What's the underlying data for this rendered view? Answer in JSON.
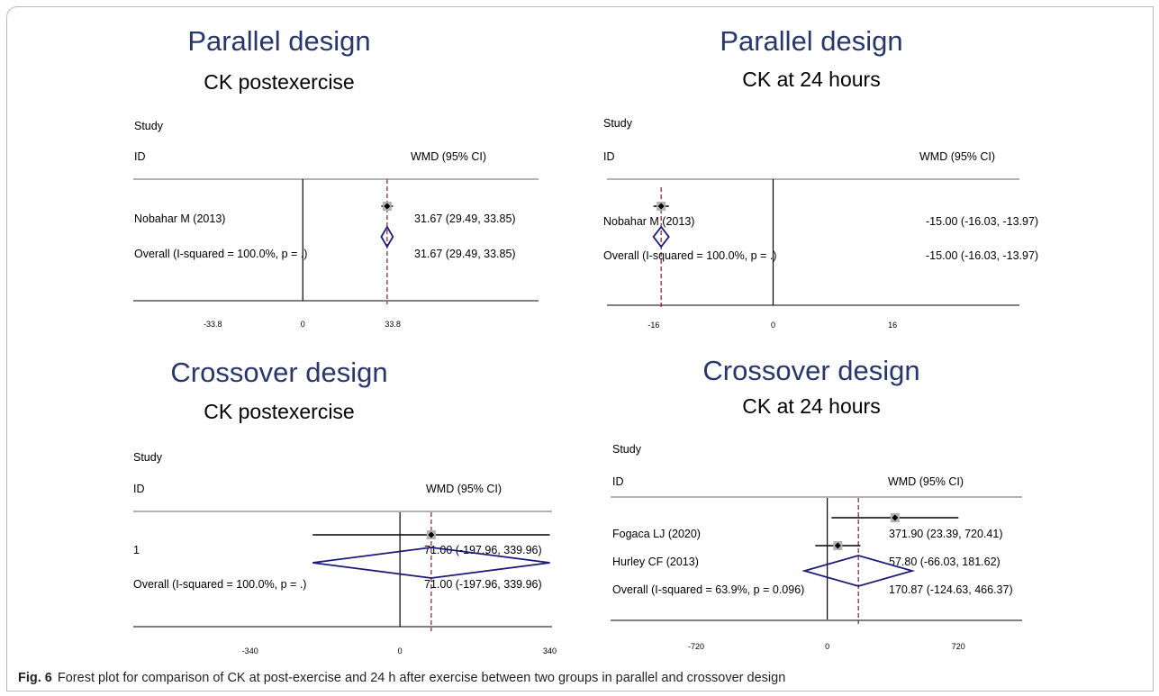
{
  "figure": {
    "label": "Fig. 6",
    "caption": "Forest plot for comparison of CK at post-exercise and 24 h after exercise between two groups in parallel and crossover design"
  },
  "colors": {
    "title": "#27366b",
    "diamond": "#1a1a7a",
    "reference_line": "#8b1a2b",
    "weight_box": "#b3b3b3",
    "text": "#000000"
  },
  "chart_data": [
    {
      "type": "forest",
      "title": "Parallel design",
      "subtitle": "CK postexercise",
      "header_study": "Study",
      "header_id": "ID",
      "header_effect": "WMD (95% CI)",
      "xticks": [
        -33.8,
        0,
        33.8
      ],
      "xtick_labels": [
        "-33.8",
        "0",
        "33.8"
      ],
      "xlim": [
        -64,
        75
      ],
      "studies": [
        {
          "label": "Nobahar M (2013)",
          "est": 31.67,
          "lo": 29.49,
          "hi": 33.85,
          "ci_text": "31.67 (29.49, 33.85)"
        }
      ],
      "overall": {
        "label": "Overall  (I-squared = 100.0%, p = .)",
        "est": 31.67,
        "lo": 29.49,
        "hi": 33.85,
        "ci_text": "31.67 (29.49, 33.85)"
      }
    },
    {
      "type": "forest",
      "title": "Parallel design",
      "subtitle": "CK at 24 hours",
      "header_study": "Study",
      "header_id": "ID",
      "header_effect": "WMD (95% CI)",
      "xticks": [
        -16,
        0,
        16
      ],
      "xtick_labels": [
        "-16",
        "0",
        "16"
      ],
      "xlim": [
        -22.5,
        33
      ],
      "studies": [
        {
          "label": "Nobahar M (2013)",
          "est": -15.0,
          "lo": -16.03,
          "hi": -13.97,
          "ci_text": "-15.00 (-16.03, -13.97)"
        }
      ],
      "overall": {
        "label": "Overall  (I-squared = 100.0%, p = .)",
        "est": -15.0,
        "lo": -16.03,
        "hi": -13.97,
        "ci_text": "-15.00 (-16.03, -13.97)"
      }
    },
    {
      "type": "forest",
      "title": "Crossover design",
      "subtitle": "CK postexercise",
      "header_study": "Study",
      "header_id": "ID",
      "header_effect": "WMD (95% CI)",
      "xticks": [
        -340,
        0,
        340
      ],
      "xtick_labels": [
        "-340",
        "0",
        "340"
      ],
      "xlim": [
        -605,
        345
      ],
      "studies": [
        {
          "label": "1",
          "est": 71.0,
          "lo": -197.96,
          "hi": 339.96,
          "ci_text": "71.00 (-197.96, 339.96)"
        }
      ],
      "overall": {
        "label": "Overall  (I-squared = 100.0%, p = .)",
        "est": 71.0,
        "lo": -197.96,
        "hi": 339.96,
        "ci_text": "71.00 (-197.96, 339.96)"
      }
    },
    {
      "type": "forest",
      "title": "Crossover design",
      "subtitle": "CK at 24 hours",
      "header_study": "Study",
      "header_id": "ID",
      "header_effect": "WMD (95% CI)",
      "xticks": [
        -720,
        0,
        720
      ],
      "xtick_labels": [
        "-720",
        "0",
        "720"
      ],
      "xlim": [
        -1190,
        1070
      ],
      "studies": [
        {
          "label": "Fogaca LJ (2020)",
          "est": 371.9,
          "lo": 23.39,
          "hi": 720.41,
          "ci_text": "371.90 (23.39, 720.41)"
        },
        {
          "label": "Hurley CF (2013)",
          "est": 57.8,
          "lo": -66.03,
          "hi": 181.62,
          "ci_text": "57.80 (-66.03, 181.62)"
        }
      ],
      "overall": {
        "label": "Overall  (I-squared = 63.9%, p = 0.096)",
        "est": 170.87,
        "lo": -124.63,
        "hi": 466.37,
        "ci_text": "170.87 (-124.63, 466.37)"
      }
    }
  ]
}
